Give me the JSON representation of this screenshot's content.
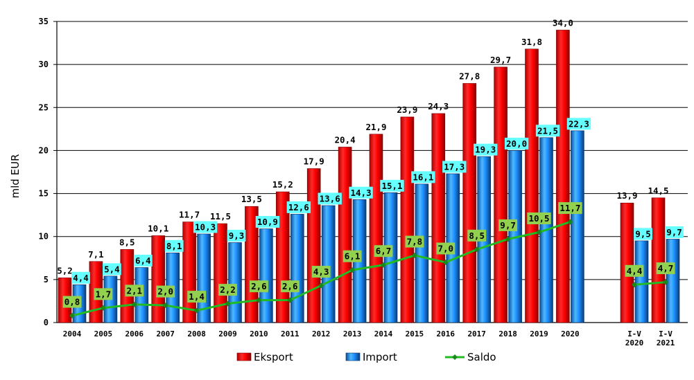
{
  "chart_data": {
    "type": "bar",
    "ylabel": "mld EUR",
    "ylim": [
      0,
      35
    ],
    "yticks": [
      0,
      5,
      10,
      15,
      20,
      25,
      30,
      35
    ],
    "grid": true,
    "legend_position": "bottom",
    "categories": [
      [
        "2004"
      ],
      [
        "2005"
      ],
      [
        "2006"
      ],
      [
        "2007"
      ],
      [
        "2008"
      ],
      [
        "2009"
      ],
      [
        "2010"
      ],
      [
        "2011"
      ],
      [
        "2012"
      ],
      [
        "2013"
      ],
      [
        "2014"
      ],
      [
        "2015"
      ],
      [
        "2016"
      ],
      [
        "2017"
      ],
      [
        "2018"
      ],
      [
        "2019"
      ],
      [
        "2020"
      ],
      [
        "I-V",
        "2020"
      ],
      [
        "I-V",
        "2021"
      ]
    ],
    "series": [
      {
        "name": "Eksport",
        "kind": "bar",
        "color": "#ff0000",
        "values": [
          5.2,
          7.1,
          8.5,
          10.1,
          11.7,
          11.5,
          13.5,
          15.2,
          17.9,
          20.4,
          21.9,
          23.9,
          24.3,
          27.8,
          29.7,
          31.8,
          34.0,
          13.9,
          14.5
        ],
        "labels": [
          "5,2",
          "7,1",
          "8,5",
          "10,1",
          "11,7",
          "11,5",
          "13,5",
          "15,2",
          "17,9",
          "20,4",
          "21,9",
          "23,9",
          "24,3",
          "27,8",
          "29,7",
          "31,8",
          "34,0",
          "13,9",
          "14,5"
        ]
      },
      {
        "name": "Import",
        "kind": "bar",
        "color": "#1e90ff",
        "label_bg": "#66ffff",
        "values": [
          4.4,
          5.4,
          6.4,
          8.1,
          10.3,
          9.3,
          10.9,
          12.6,
          13.6,
          14.3,
          15.1,
          16.1,
          17.3,
          19.3,
          20.0,
          21.5,
          22.3,
          9.5,
          9.7
        ],
        "labels": [
          "4,4",
          "5,4",
          "6,4",
          "8,1",
          "10,3",
          "9,3",
          "10,9",
          "12,6",
          "13,6",
          "14,3",
          "15,1",
          "16,1",
          "17,3",
          "19,3",
          "20,0",
          "21,5",
          "22,3",
          "9,5",
          "9,7"
        ]
      },
      {
        "name": "Saldo",
        "kind": "line",
        "color": "#22bb22",
        "label_bg": "#92d050",
        "values": [
          0.8,
          1.7,
          2.1,
          2.0,
          1.4,
          2.2,
          2.6,
          2.6,
          4.3,
          6.1,
          6.7,
          7.8,
          7.0,
          8.5,
          9.7,
          10.5,
          11.7,
          4.4,
          4.7
        ],
        "labels": [
          "0,8",
          "1,7",
          "2,1",
          "2,0",
          "1,4",
          "2,2",
          "2,6",
          "2,6",
          "4,3",
          "6,1",
          "6,7",
          "7,8",
          "7,0",
          "8,5",
          "9,7",
          "10,5",
          "11,7",
          "4,4",
          "4,7"
        ],
        "segments": [
          [
            0,
            16
          ],
          [
            17,
            18
          ]
        ]
      }
    ]
  }
}
